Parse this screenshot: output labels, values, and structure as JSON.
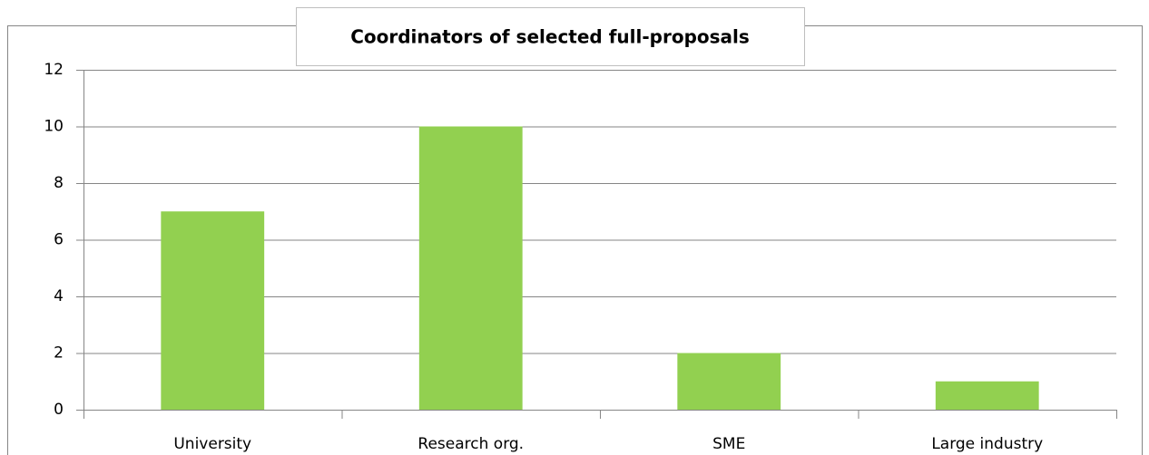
{
  "chart_data": {
    "type": "bar",
    "title": "Coordinators of selected full-proposals",
    "categories": [
      "University",
      "Research org.",
      "SME",
      "Large industry"
    ],
    "values": [
      7,
      10,
      2,
      1
    ],
    "color": "#92d050",
    "ylim": [
      0,
      12
    ],
    "yticks": [
      0,
      2,
      4,
      6,
      8,
      10,
      12
    ],
    "grid": true
  }
}
